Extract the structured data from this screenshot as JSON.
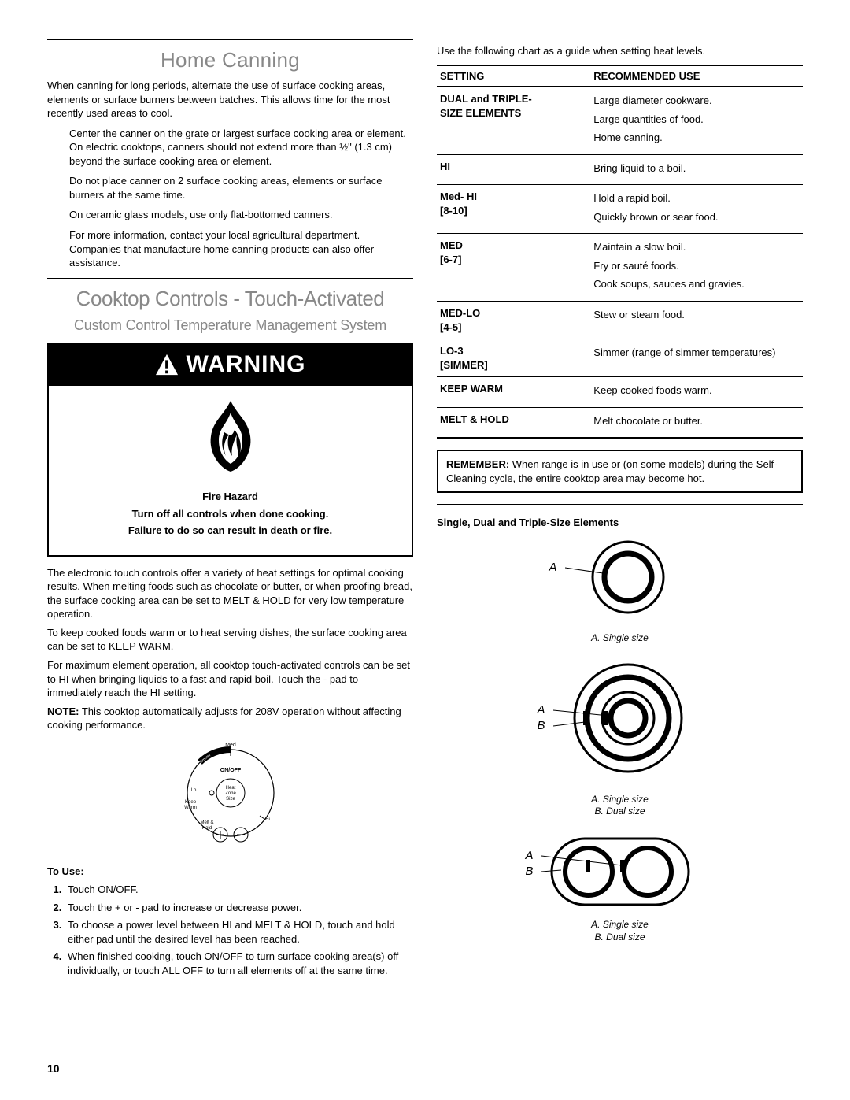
{
  "left": {
    "title1": "Home Canning",
    "intro": "When canning for long periods, alternate the use of surface cooking areas, elements or surface burners between batches. This allows time for the most recently used areas to cool.",
    "bullets": [
      "Center the canner on the grate or largest surface cooking area or element. On electric cooktops, canners should not extend more than ½\" (1.3 cm) beyond the surface cooking area or element.",
      "Do not place canner on 2 surface cooking areas, elements or surface burners at the same time.",
      "On ceramic glass models, use only flat-bottomed canners.",
      "For more information, contact your local agricultural department. Companies that manufacture home canning products can also offer assistance."
    ],
    "title2": "Cooktop Controls - Touch-Activated",
    "subtitle2": "Custom Control Temperature Management System",
    "warning": {
      "header": "WARNING",
      "lines": [
        "Fire Hazard",
        "Turn off all controls when done cooking.",
        "Failure to do so can result in death or fire."
      ]
    },
    "para1": "The electronic touch controls offer a variety of heat settings for optimal cooking results. When melting foods such as chocolate or butter, or when proofing bread, the surface cooking area can be set to MELT & HOLD for very low temperature operation.",
    "para2": "To keep cooked foods warm or to heat serving dishes, the surface cooking area can be set to KEEP WARM.",
    "para3": "For maximum element operation, all cooktop touch-activated controls can be set to HI when bringing liquids to a fast and rapid boil. Touch the  -  pad to immediately reach the HI setting.",
    "note_label": "NOTE:",
    "note": " This cooktop automatically adjusts for 208V operation without affecting cooking performance.",
    "dial": {
      "med": "Med",
      "onoff": "ON/OFF",
      "heat": "Heat",
      "zone": "Zone",
      "size": "Size",
      "lo": "Lo",
      "hi": "Hi",
      "keep": "Keep",
      "warm": "Warm",
      "melt": "Melt &",
      "hold": "Hold",
      "simmer": "Simmer"
    },
    "touse_heading": "To Use:",
    "steps": [
      "Touch ON/OFF.",
      "Touch the  +  or  -  pad to increase or decrease power.",
      "To choose a power level between HI and MELT & HOLD, touch and hold either pad until the desired level has been reached.",
      "When finished cooking, touch ON/OFF to turn surface cooking area(s) off individually, or touch ALL OFF to turn all elements off at the same time."
    ]
  },
  "right": {
    "intro": "Use the following chart as a guide when setting heat levels.",
    "th_setting": "SETTING",
    "th_use": "RECOMMENDED USE",
    "rows": [
      {
        "setting": "DUAL and TRIPLE-\nSIZE ELEMENTS",
        "uses": [
          "Large diameter cookware.",
          "Large quantities of food.",
          "Home canning."
        ]
      },
      {
        "setting": "HI",
        "uses": [
          "Bring liquid to a boil."
        ]
      },
      {
        "setting": "Med- HI\n[8-10]",
        "uses": [
          "Hold a rapid boil.",
          "Quickly brown or sear food."
        ]
      },
      {
        "setting": "MED\n[6-7]",
        "uses": [
          "Maintain a slow boil.",
          "Fry or sauté foods.",
          "Cook soups, sauces and gravies."
        ]
      },
      {
        "setting": "MED-LO\n[4-5]",
        "uses": [
          "Stew or steam food."
        ]
      },
      {
        "setting": "LO-3\n[SIMMER]",
        "uses": [
          "Simmer (range of simmer temperatures)"
        ]
      },
      {
        "setting": "KEEP WARM",
        "uses": [
          "Keep cooked foods warm."
        ]
      },
      {
        "setting": "MELT & HOLD",
        "uses": [
          "Melt chocolate or butter."
        ]
      }
    ],
    "remember_label": "REMEMBER:",
    "remember": " When range is in use or (on some models) during the Self-Cleaning cycle, the entire cooktop area may become hot.",
    "elements_heading": "Single, Dual and Triple-Size Elements",
    "labels": {
      "A": "A",
      "B": "B"
    },
    "captions": {
      "single": "A. Single size",
      "dualA": "A. Single size",
      "dualB": "B. Dual size",
      "tripA": "A. Single size",
      "tripB": "B. Dual size"
    }
  },
  "page_number": "10"
}
